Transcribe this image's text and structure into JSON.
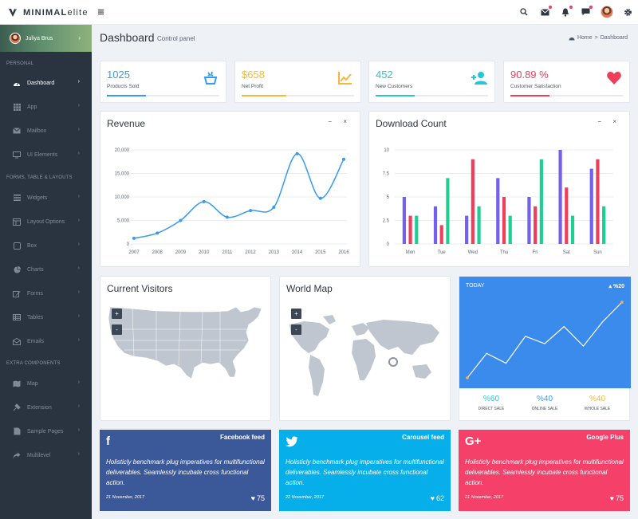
{
  "brand": {
    "strong": "MINIMAL",
    "light": "elite"
  },
  "header": {
    "icons": [
      "menu-icon",
      "search-icon",
      "mail-icon",
      "bell-icon",
      "chat-icon",
      "gear-icon"
    ]
  },
  "sidebar": {
    "user": "Juliya Brus",
    "sections": {
      "personal": "PERSONAL",
      "forms": "FORMS, TABLE & LAYOUTS",
      "extra": "EXTRA COMPONENTS"
    },
    "items": [
      {
        "label": "Dashboard",
        "icon": "dashboard-icon"
      },
      {
        "label": "App",
        "icon": "grid-icon"
      },
      {
        "label": "Mailbox",
        "icon": "mail-icon"
      },
      {
        "label": "UI Elements",
        "icon": "monitor-icon"
      },
      {
        "label": "Widgets",
        "icon": "widgets-icon"
      },
      {
        "label": "Layout Options",
        "icon": "layout-icon"
      },
      {
        "label": "Box",
        "icon": "box-icon"
      },
      {
        "label": "Charts",
        "icon": "pie-chart-icon"
      },
      {
        "label": "Forms",
        "icon": "edit-icon"
      },
      {
        "label": "Tables",
        "icon": "table-icon"
      },
      {
        "label": "Emails",
        "icon": "envelope-icon"
      },
      {
        "label": "Map",
        "icon": "map-icon"
      },
      {
        "label": "Extension",
        "icon": "plug-icon"
      },
      {
        "label": "Sample Pages",
        "icon": "pages-icon"
      },
      {
        "label": "Multilevel",
        "icon": "share-icon"
      }
    ]
  },
  "page": {
    "title": "Dashboard",
    "subtitle": "Control panel"
  },
  "breadcrumb": {
    "home": "Home",
    "sep": ">",
    "current": "Dashboard"
  },
  "stats": [
    {
      "value": "1025",
      "label": "Products Sold",
      "color": "#389af0",
      "progress": 0.35,
      "icon": "basket-icon"
    },
    {
      "value": "$658",
      "label": "Net Profit",
      "color": "#f5b83d",
      "progress": 0.4,
      "icon": "line-chart-icon"
    },
    {
      "value": "452",
      "label": "New Customers",
      "color": "#26c6da",
      "progress": 0.35,
      "icon": "add-user-icon"
    },
    {
      "value": "90.89 %",
      "label": "Customer Satisfaction",
      "color": "#ef3e5b",
      "progress": 0.35,
      "icon": "heart-icon"
    }
  ],
  "revenue": {
    "title": "Revenue",
    "tools": "− ×",
    "chart_data": {
      "type": "line",
      "x": [
        "2007",
        "2008",
        "2009",
        "2010",
        "2011",
        "2012",
        "2013",
        "2014",
        "2015",
        "2016"
      ],
      "values": [
        1200,
        2300,
        5000,
        9000,
        5700,
        7100,
        7800,
        19200,
        9700,
        18000
      ],
      "yticks": [
        "0",
        "5,000",
        "10,000",
        "15,000",
        "20,000"
      ],
      "ylim": [
        0,
        20000
      ],
      "color": "#389af0"
    }
  },
  "downloads": {
    "title": "Download Count",
    "tools": "− ×",
    "chart_data": {
      "type": "bar",
      "categories": [
        "Mon",
        "Tue",
        "Wed",
        "Thu",
        "Fri",
        "Sat",
        "Sun"
      ],
      "series": [
        {
          "color": "#7460ee",
          "values": [
            5,
            4,
            3,
            7,
            5,
            10,
            8
          ]
        },
        {
          "color": "#ef3e5b",
          "values": [
            3,
            2,
            9,
            5,
            4,
            6,
            9
          ]
        },
        {
          "color": "#1fce92",
          "values": [
            3,
            7,
            4,
            3,
            9,
            3,
            4
          ]
        }
      ],
      "yticks": [
        "0",
        "2.5",
        "5",
        "7.5",
        "10"
      ],
      "ylim": [
        0,
        10
      ]
    }
  },
  "visitors": {
    "title": "Current Visitors",
    "zoom_in": "+",
    "zoom_out": "-"
  },
  "worldmap": {
    "title": "World Map",
    "zoom_in": "+",
    "zoom_out": "-"
  },
  "today": {
    "label": "TODAY",
    "delta": "▴ %20",
    "chart_data": {
      "type": "line",
      "values": [
        2,
        22,
        14,
        36,
        30,
        44,
        28,
        48,
        64
      ],
      "color": "#ffffff"
    },
    "stats": [
      {
        "value": "%60",
        "label": "DIRECT SALE",
        "color": "#26c6da"
      },
      {
        "value": "%40",
        "label": "ONLINE SALE",
        "color": "#389af0"
      },
      {
        "value": "%40",
        "label": "WHOLE SALE",
        "color": "#f5b83d"
      }
    ]
  },
  "social": [
    {
      "icon": "f",
      "icon_name": "facebook-icon",
      "title": "Facebook feed",
      "text": "Holisticly benchmark plug imperatives for multifunctional deliverables. Seamlessly incubate cross functional action.",
      "date": "21 November, 2017",
      "likes": "75",
      "color": "#3b5998"
    },
    {
      "icon": "🐦",
      "icon_name": "twitter-icon",
      "title": "Carousel feed",
      "text": "Holisticly benchmark plug imperatives for multifunctional deliverables. Seamlessly incubate cross functional action.",
      "date": "22 November, 2017",
      "likes": "62",
      "color": "#06aeea"
    },
    {
      "icon": "G+",
      "icon_name": "google-plus-icon",
      "title": "Google Plus",
      "text": "Holisticly benchmark plug imperatives for multifunctional deliverables. Seamlessly incubate cross functional action.",
      "date": "21 November, 2017",
      "likes": "75",
      "color": "#f5406a"
    }
  ]
}
